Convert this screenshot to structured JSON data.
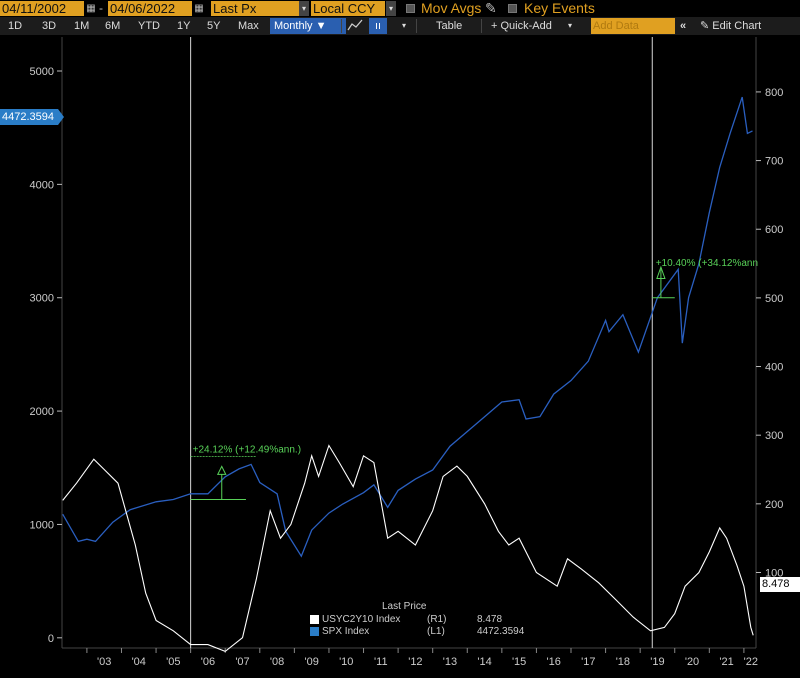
{
  "toolbar": {
    "start_date": "04/11/2002",
    "end_date": "04/06/2022",
    "field": "Last Px",
    "currency": "Local CCY",
    "mov_avgs": "Mov Avgs",
    "key_events": "Key Events"
  },
  "periods": [
    "1D",
    "3D",
    "1M",
    "6M",
    "YTD",
    "1Y",
    "5Y",
    "Max"
  ],
  "frequency": "Monthly",
  "toolbar2": {
    "table": "Table",
    "quick_add": "+ Quick-Add",
    "add_data_placeholder": "Add Data",
    "edit_chart": "Edit Chart"
  },
  "price_label": "4472.3594",
  "right_price_label": "8.478",
  "legend": {
    "title": "Last Price",
    "items": [
      {
        "name": "USYC2Y10 Index",
        "axis": "(R1)",
        "value": "8.478",
        "color": "#ffffff"
      },
      {
        "name": "SPX Index",
        "axis": "(L1)",
        "value": "4472.3594",
        "color": "#2a7dc7"
      }
    ]
  },
  "annotations": [
    {
      "text": "+24.12% (+12.49%ann.)",
      "color": "#58d158"
    },
    {
      "text": "+10.40% (+34.12%ann",
      "color": "#58d158"
    }
  ],
  "chart_data": {
    "type": "line",
    "x_ticks": [
      "'03",
      "'04",
      "'05",
      "'06",
      "'07",
      "'08",
      "'09",
      "'10",
      "'11",
      "'12",
      "'13",
      "'14",
      "'15",
      "'16",
      "'17",
      "'18",
      "'19",
      "'20",
      "'21",
      "'22"
    ],
    "left_axis": {
      "ticks": [
        0,
        1000,
        2000,
        3000,
        4000,
        5000
      ],
      "ylim": [
        -90,
        5300
      ]
    },
    "right_axis": {
      "ticks": [
        100,
        200,
        300,
        400,
        500,
        600,
        700,
        800
      ],
      "ylim": [
        -10,
        880
      ]
    },
    "series": [
      {
        "name": "SPX Index",
        "axis": "left",
        "color": "#2a5fc0",
        "x": [
          2002.3,
          2002.75,
          2003.0,
          2003.25,
          2003.75,
          2004.25,
          2005.0,
          2005.5,
          2006.0,
          2006.5,
          2007.0,
          2007.4,
          2007.75,
          2008.0,
          2008.5,
          2008.75,
          2009.2,
          2009.5,
          2010.0,
          2010.4,
          2011.0,
          2011.3,
          2011.7,
          2012.0,
          2012.5,
          2013.0,
          2013.5,
          2014.0,
          2014.5,
          2015.0,
          2015.5,
          2015.7,
          2016.1,
          2016.5,
          2017.0,
          2017.5,
          2018.0,
          2018.1,
          2018.5,
          2018.95,
          2019.5,
          2020.1,
          2020.22,
          2020.4,
          2020.7,
          2021.0,
          2021.3,
          2021.6,
          2021.95,
          2022.1,
          2022.25
        ],
        "y": [
          1090,
          850,
          870,
          850,
          1020,
          1130,
          1200,
          1220,
          1270,
          1270,
          1420,
          1490,
          1530,
          1370,
          1270,
          940,
          720,
          950,
          1100,
          1180,
          1280,
          1350,
          1150,
          1300,
          1400,
          1480,
          1690,
          1820,
          1950,
          2080,
          2100,
          1930,
          1950,
          2150,
          2270,
          2440,
          2800,
          2700,
          2850,
          2520,
          3000,
          3250,
          2600,
          3000,
          3300,
          3750,
          4150,
          4450,
          4770,
          4450,
          4472
        ]
      },
      {
        "name": "USYC2Y10 Index",
        "axis": "right",
        "color": "#ffffff",
        "x": [
          2002.3,
          2002.7,
          2003.2,
          2003.5,
          2003.9,
          2004.4,
          2004.7,
          2005.0,
          2005.5,
          2006.0,
          2006.5,
          2007.0,
          2007.5,
          2007.9,
          2008.3,
          2008.6,
          2008.9,
          2009.3,
          2009.5,
          2009.7,
          2010.0,
          2010.3,
          2010.7,
          2011.0,
          2011.3,
          2011.7,
          2012.0,
          2012.5,
          2013.0,
          2013.3,
          2013.7,
          2014.0,
          2014.5,
          2014.9,
          2015.2,
          2015.5,
          2015.7,
          2016.0,
          2016.6,
          2016.9,
          2017.3,
          2017.8,
          2018.3,
          2018.8,
          2019.3,
          2019.7,
          2020.0,
          2020.3,
          2020.7,
          2021.0,
          2021.3,
          2021.5,
          2021.8,
          2022.0,
          2022.2,
          2022.27
        ],
        "y": [
          205,
          230,
          265,
          250,
          230,
          140,
          70,
          30,
          15,
          -5,
          -5,
          -15,
          5,
          90,
          190,
          150,
          170,
          230,
          270,
          240,
          285,
          260,
          225,
          270,
          260,
          150,
          160,
          140,
          190,
          240,
          255,
          240,
          200,
          160,
          140,
          150,
          130,
          100,
          80,
          120,
          105,
          85,
          60,
          35,
          15,
          20,
          40,
          80,
          100,
          130,
          165,
          150,
          110,
          80,
          20,
          8.478
        ]
      }
    ]
  }
}
